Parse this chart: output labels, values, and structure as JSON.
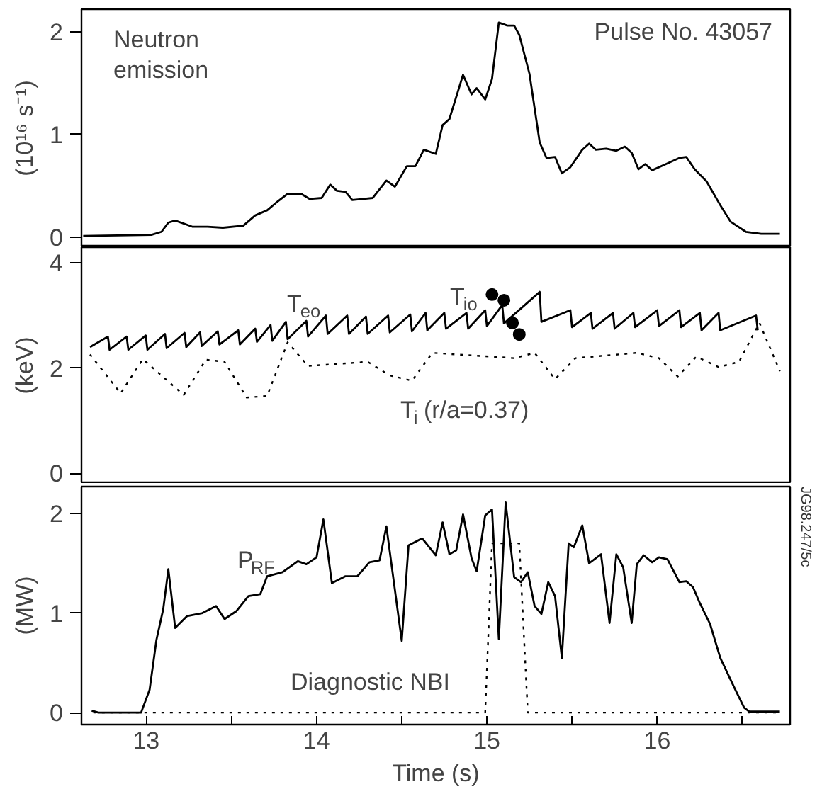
{
  "chart_data": [
    {
      "type": "line",
      "ylabel": "(10¹⁶ s⁻¹)",
      "xlim": [
        12.62,
        16.78
      ],
      "ylim": [
        -0.1,
        2.22
      ],
      "yticks": [
        0,
        1,
        2
      ],
      "tick_labels": "y",
      "annotations": [
        "Pulse No. 43057"
      ],
      "series": [
        {
          "name": "Neutron emission",
          "color": "#000000",
          "line_style": "solid",
          "x": [
            12.63,
            13.03,
            13.09,
            13.13,
            13.17,
            13.27,
            13.36,
            13.45,
            13.57,
            13.64,
            13.71,
            13.76,
            13.83,
            13.91,
            13.96,
            14.03,
            14.08,
            14.12,
            14.17,
            14.21,
            14.33,
            14.41,
            14.46,
            14.53,
            14.58,
            14.63,
            14.7,
            14.74,
            14.78,
            14.86,
            14.91,
            14.94,
            14.99,
            15.03,
            15.07,
            15.12,
            15.16,
            15.19,
            15.25,
            15.31,
            15.35,
            15.4,
            15.44,
            15.49,
            15.56,
            15.6,
            15.64,
            15.7,
            15.76,
            15.81,
            15.85,
            15.89,
            15.93,
            15.97,
            16.05,
            16.13,
            16.17,
            16.22,
            16.29,
            16.37,
            16.43,
            16.52,
            16.61,
            16.72
          ],
          "values": [
            0.01,
            0.02,
            0.05,
            0.14,
            0.16,
            0.1,
            0.1,
            0.09,
            0.11,
            0.21,
            0.26,
            0.33,
            0.42,
            0.42,
            0.37,
            0.38,
            0.51,
            0.45,
            0.44,
            0.36,
            0.38,
            0.55,
            0.49,
            0.69,
            0.69,
            0.85,
            0.81,
            1.09,
            1.15,
            1.58,
            1.39,
            1.45,
            1.34,
            1.54,
            2.09,
            2.06,
            2.06,
            1.97,
            1.59,
            0.92,
            0.77,
            0.78,
            0.62,
            0.68,
            0.85,
            0.91,
            0.85,
            0.86,
            0.84,
            0.88,
            0.82,
            0.66,
            0.71,
            0.65,
            0.71,
            0.77,
            0.78,
            0.66,
            0.54,
            0.31,
            0.15,
            0.05,
            0.03,
            0.03
          ]
        }
      ]
    },
    {
      "type": "line",
      "ylabel": "(keV)",
      "xlim": [
        12.62,
        16.78
      ],
      "ylim": [
        -0.2,
        4.3
      ],
      "yticks": [
        0,
        2,
        4
      ],
      "tick_labels": "y",
      "series": [
        {
          "name": "T$_{eo}$",
          "color": "#000000",
          "line_style": "solid",
          "x": [
            12.67,
            12.775,
            12.785,
            12.885,
            12.895,
            12.997,
            13.007,
            13.11,
            13.12,
            13.225,
            13.235,
            13.316,
            13.326,
            13.42,
            13.43,
            13.54,
            13.55,
            13.64,
            13.65,
            13.73,
            13.74,
            13.82,
            13.83,
            13.94,
            13.95,
            14.055,
            14.065,
            14.18,
            14.19,
            14.29,
            14.3,
            14.42,
            14.43,
            14.55,
            14.56,
            14.64,
            14.65,
            14.75,
            14.76,
            14.88,
            14.89,
            14.99,
            15.0,
            15.09,
            15.1,
            15.31,
            15.32,
            15.49,
            15.5,
            15.61,
            15.62,
            15.74,
            15.75,
            15.86,
            15.87,
            16.0,
            16.01,
            16.13,
            16.14,
            16.25,
            16.26,
            16.36,
            16.37,
            16.58,
            16.59
          ],
          "values": [
            2.4,
            2.6,
            2.35,
            2.6,
            2.35,
            2.62,
            2.35,
            2.65,
            2.38,
            2.67,
            2.4,
            2.68,
            2.42,
            2.7,
            2.45,
            2.72,
            2.45,
            2.75,
            2.5,
            2.82,
            2.52,
            2.88,
            2.55,
            2.9,
            2.6,
            3.0,
            2.65,
            3.0,
            2.65,
            2.98,
            2.65,
            3.0,
            2.68,
            3.02,
            2.7,
            3.05,
            2.72,
            3.05,
            2.75,
            3.05,
            2.75,
            3.1,
            2.8,
            3.2,
            2.85,
            3.45,
            2.88,
            3.1,
            2.78,
            3.05,
            2.75,
            3.05,
            2.75,
            3.05,
            2.78,
            3.1,
            2.8,
            3.1,
            2.78,
            3.05,
            2.72,
            3.05,
            2.72,
            3.0,
            2.72
          ]
        },
        {
          "name": "T$_{io}$",
          "type": "scatter",
          "marker": "circle",
          "color": "#000000",
          "x": [
            15.03,
            15.1,
            15.15,
            15.19
          ],
          "values": [
            3.4,
            3.29,
            2.86,
            2.64
          ]
        },
        {
          "name": "T$_{i}$(r/a=0.37)",
          "color": "#000000",
          "line_style": "dotted",
          "x": [
            12.67,
            12.85,
            12.98,
            13.22,
            13.35,
            13.46,
            13.59,
            13.71,
            13.83,
            13.95,
            14.3,
            14.43,
            14.56,
            14.68,
            15.16,
            15.28,
            15.4,
            15.52,
            15.88,
            16.01,
            16.12,
            16.23,
            16.36,
            16.48,
            16.6,
            16.72
          ],
          "values": [
            2.26,
            1.52,
            2.17,
            1.49,
            2.16,
            2.12,
            1.44,
            1.47,
            2.49,
            2.04,
            2.12,
            1.86,
            1.76,
            2.29,
            2.19,
            2.29,
            1.79,
            2.19,
            2.29,
            2.19,
            1.84,
            2.22,
            2.02,
            2.12,
            2.86,
            1.94
          ]
        }
      ]
    },
    {
      "type": "line",
      "ylabel": "(MW)",
      "xlabel": "Time (s)",
      "xlim": [
        12.62,
        16.78
      ],
      "ylim": [
        -0.12,
        2.27
      ],
      "yticks": [
        0,
        1,
        2
      ],
      "xticks": [
        13,
        {
          "value": 13.5,
          "label": null
        },
        14,
        {
          "value": 14.5,
          "label": null
        },
        15,
        {
          "value": 15.5,
          "label": null
        },
        16,
        {
          "value": 16.5,
          "label": null
        }
      ],
      "annotations": [
        "JG98.247/5c"
      ],
      "series": [
        {
          "name": "P$_{RF}$",
          "color": "#000000",
          "line_style": "solid",
          "x": [
            12.68,
            12.72,
            12.97,
            13.02,
            13.06,
            13.1,
            13.13,
            13.17,
            13.24,
            13.33,
            13.41,
            13.46,
            13.53,
            13.6,
            13.67,
            13.71,
            13.8,
            13.89,
            13.94,
            14.0,
            14.04,
            14.09,
            14.17,
            14.24,
            14.31,
            14.37,
            14.41,
            14.5,
            14.54,
            14.62,
            14.7,
            14.74,
            14.78,
            14.82,
            14.86,
            14.91,
            14.94,
            14.99,
            15.03,
            15.07,
            15.11,
            15.16,
            15.2,
            15.24,
            15.28,
            15.32,
            15.36,
            15.4,
            15.44,
            15.48,
            15.51,
            15.56,
            15.6,
            15.67,
            15.72,
            15.76,
            15.8,
            15.85,
            15.88,
            15.92,
            15.97,
            16.01,
            16.06,
            16.13,
            16.17,
            16.21,
            16.25,
            16.31,
            16.37,
            16.45,
            16.51,
            16.54,
            16.72
          ],
          "values": [
            0.02,
            0,
            0,
            0.23,
            0.73,
            1.04,
            1.44,
            0.85,
            0.97,
            1.0,
            1.07,
            0.94,
            1.02,
            1.17,
            1.19,
            1.37,
            1.41,
            1.52,
            1.49,
            1.56,
            1.94,
            1.3,
            1.37,
            1.37,
            1.51,
            1.53,
            1.87,
            0.72,
            1.68,
            1.75,
            1.58,
            1.91,
            1.59,
            1.63,
            1.99,
            1.55,
            1.42,
            1.98,
            2.04,
            0.74,
            2.11,
            1.36,
            1.31,
            1.41,
            1.07,
            0.99,
            1.31,
            1.17,
            0.55,
            1.7,
            1.66,
            1.88,
            1.5,
            1.59,
            0.9,
            1.59,
            1.46,
            0.9,
            1.49,
            1.58,
            1.51,
            1.56,
            1.54,
            1.31,
            1.32,
            1.26,
            1.1,
            0.89,
            0.55,
            0.26,
            0.05,
            0.01,
            0.01
          ]
        },
        {
          "name": "Diagnostic NBI",
          "color": "#000000",
          "line_style": "dotted",
          "x": [
            12.69,
            14.99,
            15.03,
            15.19,
            15.24,
            16.72
          ],
          "values": [
            0,
            0,
            1.7,
            1.7,
            0,
            0
          ]
        }
      ]
    }
  ]
}
